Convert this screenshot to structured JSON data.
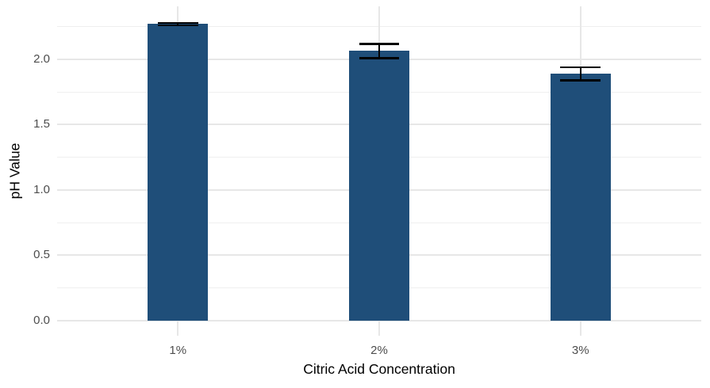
{
  "chart_data": {
    "type": "bar",
    "title": "",
    "xlabel": "Citric Acid Concentration",
    "ylabel": "pH Value",
    "categories": [
      "1%",
      "2%",
      "3%"
    ],
    "values": [
      2.27,
      2.065,
      1.89
    ],
    "error_margins": [
      0.01,
      0.055,
      0.05
    ],
    "ylim": [
      -0.115,
      2.405
    ],
    "yticks_major": [
      0.0,
      0.5,
      1.0,
      1.5,
      2.0
    ],
    "ytick_labels": [
      "0.0",
      "0.5",
      "1.0",
      "1.5",
      "2.0"
    ],
    "yticks_minor": [
      0.25,
      0.75,
      1.25,
      1.75,
      2.25
    ],
    "legend": "none",
    "grid": "horizontal major+minor, vertical at categories",
    "bar_color": "#1f4e79",
    "error_bar_color": "#000000",
    "grid_major_color": "#e7e7e7",
    "grid_minor_color": "#efefef",
    "tick_label_color": "#4d4d4d",
    "axis_title_color": "#000000",
    "background_color": "#ffffff"
  }
}
